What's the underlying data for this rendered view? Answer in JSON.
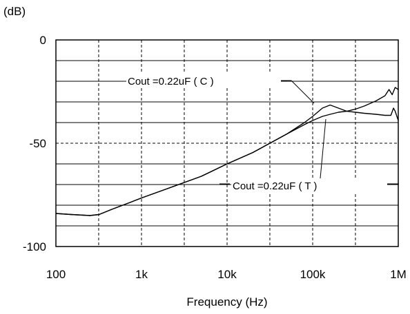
{
  "chart_data": {
    "type": "line",
    "title": "",
    "xlabel": "Frequency (Hz)",
    "ylabel": "(dB)",
    "xscale": "log",
    "xlim": [
      100,
      1000000
    ],
    "ylim": [
      -100,
      0
    ],
    "x_ticks": [
      "100",
      "1k",
      "10k",
      "100k",
      "1M"
    ],
    "y_ticks": [
      "0",
      "-50",
      "-100"
    ],
    "grid": true,
    "series": [
      {
        "name": "Cout =0.22uF ( C )",
        "color": "#000000",
        "points": [
          [
            100,
            -84
          ],
          [
            150,
            -84.5
          ],
          [
            250,
            -85
          ],
          [
            320,
            -84.5
          ],
          [
            450,
            -82
          ],
          [
            700,
            -79
          ],
          [
            1000,
            -76.5
          ],
          [
            2000,
            -72
          ],
          [
            3160,
            -69
          ],
          [
            5000,
            -66
          ],
          [
            10000,
            -60
          ],
          [
            20000,
            -54.5
          ],
          [
            31600,
            -50
          ],
          [
            50000,
            -45.5
          ],
          [
            80000,
            -40
          ],
          [
            100000,
            -37
          ],
          [
            130000,
            -33
          ],
          [
            160000,
            -31.5
          ],
          [
            200000,
            -33
          ],
          [
            250000,
            -34.5
          ],
          [
            316000,
            -35
          ],
          [
            400000,
            -35.5
          ],
          [
            550000,
            -36
          ],
          [
            700000,
            -36.5
          ],
          [
            820000,
            -36.5
          ],
          [
            880000,
            -33
          ],
          [
            920000,
            -34.5
          ],
          [
            1000000,
            -39
          ]
        ]
      },
      {
        "name": "Cout =0.22uF ( T )",
        "color": "#000000",
        "points": [
          [
            100,
            -84
          ],
          [
            150,
            -84.5
          ],
          [
            250,
            -85
          ],
          [
            320,
            -84.5
          ],
          [
            450,
            -82
          ],
          [
            700,
            -79
          ],
          [
            1000,
            -76.5
          ],
          [
            2000,
            -72
          ],
          [
            3160,
            -69
          ],
          [
            5000,
            -66
          ],
          [
            10000,
            -60
          ],
          [
            20000,
            -54.5
          ],
          [
            31600,
            -50
          ],
          [
            50000,
            -45.5
          ],
          [
            80000,
            -41
          ],
          [
            100000,
            -39
          ],
          [
            130000,
            -37
          ],
          [
            160000,
            -36
          ],
          [
            200000,
            -35
          ],
          [
            250000,
            -34.5
          ],
          [
            316000,
            -33.5
          ],
          [
            400000,
            -32
          ],
          [
            550000,
            -29.5
          ],
          [
            700000,
            -27
          ],
          [
            780000,
            -24
          ],
          [
            850000,
            -26.5
          ],
          [
            920000,
            -23
          ],
          [
            1000000,
            -24
          ]
        ]
      }
    ],
    "annotations": [
      {
        "text": "Cout =0.22uF ( C )",
        "series": 0
      },
      {
        "text": "Cout =0.22uF ( T )",
        "series": 1
      }
    ]
  }
}
